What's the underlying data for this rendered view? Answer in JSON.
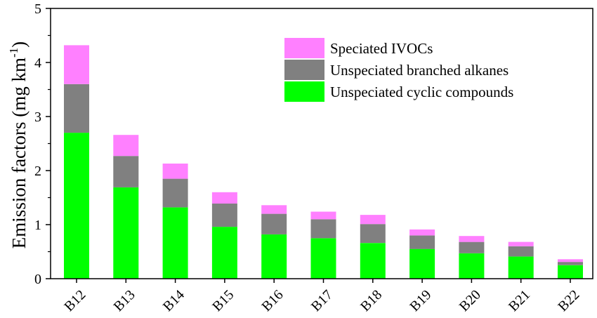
{
  "chart_data": {
    "type": "bar",
    "stacked": true,
    "ylabel_main": "Emission factors (mg km",
    "ylabel_sup": "-1",
    "ylabel_close": ")",
    "xlabel": "",
    "ylim": [
      0,
      5
    ],
    "yticks": [
      "0",
      "1",
      "2",
      "3",
      "4",
      "5"
    ],
    "categories": [
      "B12",
      "B13",
      "B14",
      "B15",
      "B16",
      "B17",
      "B18",
      "B19",
      "B20",
      "B21",
      "B22"
    ],
    "series": [
      {
        "name": "Unspeciated cyclic compounds",
        "color": "#00ff00",
        "values": [
          2.7,
          1.69,
          1.32,
          0.96,
          0.82,
          0.75,
          0.66,
          0.55,
          0.47,
          0.41,
          0.25
        ]
      },
      {
        "name": "Unspeciated branched alkanes",
        "color": "#808080",
        "values": [
          0.9,
          0.58,
          0.53,
          0.43,
          0.38,
          0.35,
          0.35,
          0.25,
          0.21,
          0.19,
          0.06
        ]
      },
      {
        "name": "Speciated IVOCs",
        "color": "#ff80ff",
        "values": [
          0.72,
          0.39,
          0.28,
          0.21,
          0.16,
          0.14,
          0.17,
          0.11,
          0.11,
          0.08,
          0.05
        ]
      }
    ],
    "legend": {
      "position": "top-right",
      "order": [
        "Speciated IVOCs",
        "Unspeciated branched alkanes",
        "Unspeciated cyclic compounds"
      ]
    },
    "grid": false
  }
}
